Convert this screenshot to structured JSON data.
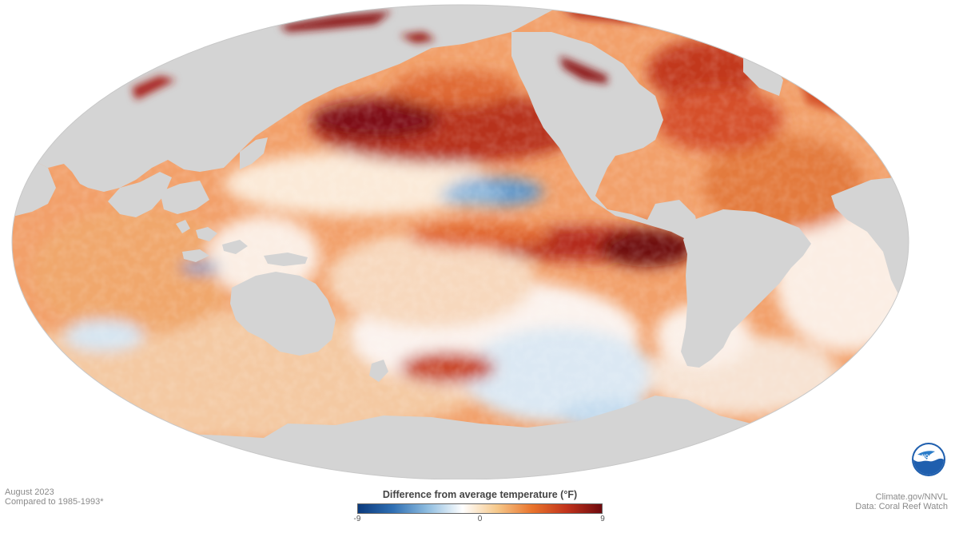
{
  "map": {
    "projection": "Mollweide",
    "centered_on": "Pacific Ocean",
    "land_color": "#d4d4d4",
    "background_color": "#ffffff"
  },
  "caption_left": {
    "line1": "August 2023",
    "line2": "Compared to 1985-1993*"
  },
  "caption_right": {
    "line1": "Climate.gov/NNVL",
    "line2": "Data: Coral Reef Watch"
  },
  "legend": {
    "title": "Difference from average temperature (°F)",
    "min_label": "-9",
    "mid_label": "0",
    "max_label": "9",
    "range": [
      -9,
      9
    ],
    "colors": [
      "#0b3a7d",
      "#2f6fb3",
      "#8fbde0",
      "#ffffff",
      "#f6c88a",
      "#e9742c",
      "#c1331c",
      "#6e0a0e"
    ]
  },
  "logo": {
    "icon": "noaa-logo-icon",
    "text": "NOAA"
  }
}
